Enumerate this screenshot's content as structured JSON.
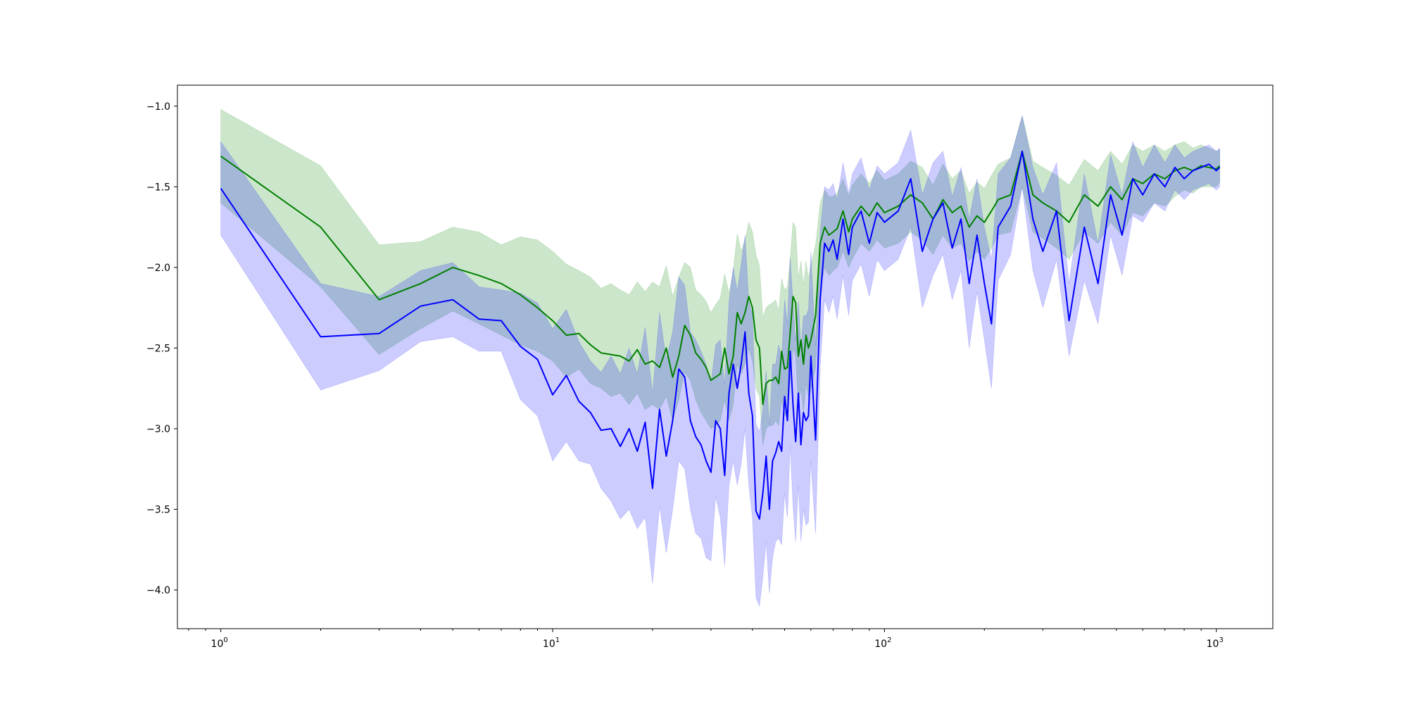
{
  "chart_data": {
    "type": "line",
    "xscale": "log",
    "xlim": [
      0.74,
      1480
    ],
    "ylim": [
      -4.24,
      -0.87
    ],
    "grid": false,
    "title": "",
    "xlabel": "",
    "ylabel": "",
    "xticks": [
      {
        "value": 1,
        "base": "10",
        "exp": "0"
      },
      {
        "value": 10,
        "base": "10",
        "exp": "1"
      },
      {
        "value": 100,
        "base": "10",
        "exp": "2"
      },
      {
        "value": 1000,
        "base": "10",
        "exp": "3"
      }
    ],
    "yticks": [
      {
        "value": -1.0,
        "label": "−1.0"
      },
      {
        "value": -1.5,
        "label": "−1.5"
      },
      {
        "value": -2.0,
        "label": "−2.0"
      },
      {
        "value": -2.5,
        "label": "−2.5"
      },
      {
        "value": -3.0,
        "label": "−3.0"
      },
      {
        "value": -3.5,
        "label": "−3.5"
      },
      {
        "value": -4.0,
        "label": "−4.0"
      }
    ],
    "series": [
      {
        "color": "#008000",
        "band_color": "#008000",
        "band_opacity": 0.2,
        "x": [
          1,
          2,
          3,
          4,
          5,
          6,
          7,
          8,
          9,
          10,
          11,
          12,
          13,
          14,
          15,
          16,
          17,
          18,
          19,
          20,
          21,
          22,
          23,
          24,
          25,
          26,
          27,
          28,
          29,
          30,
          31,
          32,
          33,
          34,
          35,
          36,
          37,
          38,
          39,
          40,
          41,
          42,
          43,
          44,
          45,
          46,
          47,
          48,
          49,
          50,
          51,
          52,
          53,
          54,
          55,
          56,
          57,
          58,
          59,
          60,
          62,
          64,
          66,
          68,
          70,
          72,
          75,
          78,
          80,
          85,
          90,
          95,
          100,
          110,
          120,
          130,
          140,
          150,
          160,
          170,
          180,
          190,
          200,
          210,
          220,
          240,
          260,
          280,
          300,
          330,
          360,
          400,
          440,
          480,
          520,
          560,
          600,
          650,
          700,
          750,
          800,
          850,
          900,
          950,
          1000,
          1024
        ],
        "y": [
          -1.31,
          -1.75,
          -2.2,
          -2.1,
          -2.0,
          -2.05,
          -2.1,
          -2.17,
          -2.25,
          -2.33,
          -2.42,
          -2.41,
          -2.48,
          -2.53,
          -2.54,
          -2.55,
          -2.58,
          -2.51,
          -2.6,
          -2.58,
          -2.62,
          -2.5,
          -2.68,
          -2.55,
          -2.36,
          -2.42,
          -2.53,
          -2.57,
          -2.62,
          -2.7,
          -2.68,
          -2.66,
          -2.5,
          -2.66,
          -2.55,
          -2.28,
          -2.35,
          -2.28,
          -2.18,
          -2.25,
          -2.45,
          -2.5,
          -2.85,
          -2.72,
          -2.7,
          -2.7,
          -2.68,
          -2.72,
          -2.52,
          -2.63,
          -2.62,
          -2.4,
          -2.18,
          -2.22,
          -2.55,
          -2.45,
          -2.6,
          -2.42,
          -2.5,
          -2.45,
          -2.3,
          -1.85,
          -1.75,
          -1.8,
          -1.78,
          -1.76,
          -1.65,
          -1.78,
          -1.7,
          -1.62,
          -1.68,
          -1.6,
          -1.66,
          -1.62,
          -1.55,
          -1.6,
          -1.7,
          -1.58,
          -1.66,
          -1.62,
          -1.75,
          -1.68,
          -1.72,
          -1.65,
          -1.58,
          -1.55,
          -1.28,
          -1.55,
          -1.6,
          -1.65,
          -1.72,
          -1.55,
          -1.62,
          -1.5,
          -1.58,
          -1.45,
          -1.48,
          -1.42,
          -1.45,
          -1.4,
          -1.38,
          -1.4,
          -1.37,
          -1.38,
          -1.39,
          -1.37
        ],
        "lower": [
          -1.6,
          -2.12,
          -2.54,
          -2.38,
          -2.27,
          -2.35,
          -2.42,
          -2.48,
          -2.52,
          -2.58,
          -2.68,
          -2.63,
          -2.72,
          -2.75,
          -2.8,
          -2.78,
          -2.85,
          -2.78,
          -2.88,
          -2.85,
          -2.88,
          -2.8,
          -2.95,
          -2.82,
          -2.65,
          -2.7,
          -2.82,
          -2.9,
          -2.95,
          -3.0,
          -2.98,
          -2.95,
          -2.82,
          -2.95,
          -2.85,
          -2.6,
          -2.66,
          -2.6,
          -2.5,
          -2.58,
          -2.75,
          -2.8,
          -3.1,
          -3.0,
          -2.98,
          -2.98,
          -2.95,
          -2.98,
          -2.82,
          -2.92,
          -2.9,
          -2.72,
          -2.5,
          -2.55,
          -2.85,
          -2.75,
          -2.9,
          -2.72,
          -2.8,
          -2.75,
          -2.62,
          -2.15,
          -2.0,
          -2.05,
          -2.02,
          -2.0,
          -1.9,
          -2.0,
          -1.95,
          -1.85,
          -1.9,
          -1.83,
          -1.88,
          -1.85,
          -1.78,
          -1.83,
          -1.92,
          -1.8,
          -1.88,
          -1.85,
          -1.96,
          -1.9,
          -1.95,
          -1.88,
          -1.8,
          -1.78,
          -1.5,
          -1.78,
          -1.82,
          -1.88,
          -1.95,
          -1.78,
          -1.85,
          -1.72,
          -1.8,
          -1.66,
          -1.68,
          -1.6,
          -1.62,
          -1.56,
          -1.52,
          -1.54,
          -1.5,
          -1.5,
          -1.5,
          -1.47
        ],
        "upper": [
          -1.02,
          -1.37,
          -1.86,
          -1.84,
          -1.75,
          -1.78,
          -1.86,
          -1.81,
          -1.83,
          -1.9,
          -1.98,
          -2.02,
          -2.06,
          -2.13,
          -2.1,
          -2.14,
          -2.17,
          -2.09,
          -2.15,
          -2.09,
          -2.12,
          -1.99,
          -2.18,
          -2.06,
          -1.97,
          -2.0,
          -2.14,
          -2.17,
          -2.21,
          -2.28,
          -2.23,
          -2.19,
          -2.04,
          -2.16,
          -2.02,
          -1.79,
          -1.9,
          -1.83,
          -1.72,
          -1.78,
          -1.92,
          -1.99,
          -2.31,
          -2.25,
          -2.23,
          -2.22,
          -2.2,
          -2.27,
          -2.07,
          -2.14,
          -2.12,
          -1.94,
          -1.72,
          -1.75,
          -2.07,
          -1.96,
          -2.11,
          -1.96,
          -2.07,
          -1.98,
          -1.86,
          -1.6,
          -1.52,
          -1.56,
          -1.56,
          -1.54,
          -1.45,
          -1.56,
          -1.49,
          -1.42,
          -1.48,
          -1.4,
          -1.46,
          -1.42,
          -1.34,
          -1.38,
          -1.49,
          -1.36,
          -1.45,
          -1.4,
          -1.54,
          -1.47,
          -1.51,
          -1.43,
          -1.36,
          -1.32,
          -1.06,
          -1.34,
          -1.38,
          -1.43,
          -1.49,
          -1.33,
          -1.4,
          -1.28,
          -1.36,
          -1.24,
          -1.28,
          -1.24,
          -1.28,
          -1.24,
          -1.22,
          -1.26,
          -1.24,
          -1.26,
          -1.28,
          -1.27
        ]
      },
      {
        "color": "#0000ff",
        "band_color": "#0000ff",
        "band_opacity": 0.2,
        "x": [
          1,
          2,
          3,
          4,
          5,
          6,
          7,
          8,
          9,
          10,
          11,
          12,
          13,
          14,
          15,
          16,
          17,
          18,
          19,
          20,
          21,
          22,
          23,
          24,
          25,
          26,
          27,
          28,
          29,
          30,
          31,
          32,
          33,
          34,
          35,
          36,
          37,
          38,
          39,
          40,
          41,
          42,
          43,
          44,
          45,
          46,
          47,
          48,
          49,
          50,
          51,
          52,
          53,
          54,
          55,
          56,
          57,
          58,
          59,
          60,
          62,
          64,
          66,
          68,
          70,
          72,
          75,
          78,
          80,
          85,
          90,
          95,
          100,
          110,
          120,
          130,
          140,
          150,
          160,
          170,
          180,
          190,
          200,
          210,
          220,
          240,
          260,
          280,
          300,
          330,
          360,
          400,
          440,
          480,
          520,
          560,
          600,
          650,
          700,
          750,
          800,
          850,
          900,
          950,
          1000,
          1024
        ],
        "y": [
          -1.51,
          -2.43,
          -2.41,
          -2.24,
          -2.2,
          -2.32,
          -2.33,
          -2.49,
          -2.57,
          -2.79,
          -2.67,
          -2.83,
          -2.9,
          -3.01,
          -3.0,
          -3.11,
          -3.0,
          -3.14,
          -2.96,
          -3.37,
          -2.88,
          -3.17,
          -2.95,
          -2.63,
          -2.68,
          -2.95,
          -3.05,
          -3.1,
          -3.2,
          -3.27,
          -2.95,
          -3.0,
          -3.29,
          -2.78,
          -2.6,
          -2.75,
          -2.6,
          -2.4,
          -2.78,
          -2.92,
          -3.51,
          -3.56,
          -3.4,
          -3.17,
          -3.5,
          -3.2,
          -3.15,
          -3.08,
          -3.14,
          -2.8,
          -2.95,
          -2.52,
          -2.85,
          -3.08,
          -2.78,
          -3.1,
          -2.9,
          -2.95,
          -2.92,
          -2.55,
          -3.07,
          -2.2,
          -1.85,
          -1.9,
          -1.83,
          -1.95,
          -1.7,
          -1.92,
          -1.75,
          -1.65,
          -1.85,
          -1.66,
          -1.72,
          -1.65,
          -1.45,
          -1.9,
          -1.7,
          -1.6,
          -1.88,
          -1.7,
          -2.1,
          -1.8,
          -2.1,
          -2.35,
          -1.75,
          -1.62,
          -1.28,
          -1.7,
          -1.9,
          -1.65,
          -2.33,
          -1.75,
          -2.1,
          -1.55,
          -1.8,
          -1.45,
          -1.55,
          -1.42,
          -1.5,
          -1.38,
          -1.45,
          -1.4,
          -1.38,
          -1.36,
          -1.4,
          -1.38
        ],
        "lower": [
          -1.8,
          -2.76,
          -2.64,
          -2.46,
          -2.43,
          -2.52,
          -2.52,
          -2.82,
          -2.92,
          -3.2,
          -3.08,
          -3.2,
          -3.22,
          -3.37,
          -3.45,
          -3.56,
          -3.5,
          -3.62,
          -3.55,
          -3.96,
          -3.48,
          -3.77,
          -3.5,
          -3.2,
          -3.25,
          -3.5,
          -3.65,
          -3.68,
          -3.8,
          -3.82,
          -3.42,
          -3.55,
          -3.85,
          -3.35,
          -3.2,
          -3.35,
          -3.22,
          -3.0,
          -3.35,
          -3.55,
          -4.05,
          -4.1,
          -3.92,
          -3.7,
          -4.02,
          -3.8,
          -3.7,
          -3.68,
          -3.72,
          -3.4,
          -3.55,
          -3.1,
          -3.48,
          -3.7,
          -3.35,
          -3.7,
          -3.5,
          -3.6,
          -3.58,
          -3.2,
          -3.65,
          -2.62,
          -2.2,
          -2.28,
          -2.18,
          -2.32,
          -2.05,
          -2.3,
          -2.08,
          -1.98,
          -2.18,
          -1.95,
          -2.02,
          -1.95,
          -1.75,
          -2.25,
          -2.05,
          -1.92,
          -2.2,
          -2.02,
          -2.5,
          -2.15,
          -2.45,
          -2.75,
          -2.08,
          -1.92,
          -1.5,
          -2.02,
          -2.25,
          -1.95,
          -2.55,
          -2.08,
          -2.35,
          -1.8,
          -2.05,
          -1.68,
          -1.72,
          -1.6,
          -1.65,
          -1.52,
          -1.58,
          -1.52,
          -1.5,
          -1.48,
          -1.52,
          -1.5
        ],
        "upper": [
          -1.22,
          -2.1,
          -2.18,
          -2.02,
          -1.97,
          -2.12,
          -2.14,
          -2.16,
          -2.22,
          -2.38,
          -2.26,
          -2.46,
          -2.58,
          -2.65,
          -2.55,
          -2.66,
          -2.5,
          -2.66,
          -2.37,
          -2.78,
          -2.28,
          -2.57,
          -2.4,
          -2.06,
          -2.11,
          -2.4,
          -2.45,
          -2.52,
          -2.6,
          -2.72,
          -2.48,
          -2.45,
          -2.73,
          -2.21,
          -2.0,
          -2.15,
          -1.98,
          -1.8,
          -2.21,
          -2.29,
          -2.97,
          -3.02,
          -2.88,
          -2.64,
          -2.98,
          -2.6,
          -2.6,
          -2.48,
          -2.56,
          -2.2,
          -2.35,
          -1.94,
          -2.22,
          -2.46,
          -2.21,
          -2.5,
          -2.3,
          -2.3,
          -2.26,
          -1.9,
          -2.49,
          -1.78,
          -1.5,
          -1.52,
          -1.48,
          -1.58,
          -1.35,
          -1.54,
          -1.42,
          -1.32,
          -1.52,
          -1.37,
          -1.42,
          -1.35,
          -1.15,
          -1.55,
          -1.35,
          -1.28,
          -1.56,
          -1.38,
          -1.7,
          -1.45,
          -1.75,
          -1.95,
          -1.42,
          -1.32,
          -1.06,
          -1.38,
          -1.55,
          -1.35,
          -2.1,
          -1.42,
          -1.85,
          -1.3,
          -1.55,
          -1.22,
          -1.38,
          -1.24,
          -1.35,
          -1.24,
          -1.32,
          -1.28,
          -1.26,
          -1.24,
          -1.28,
          -1.26
        ]
      }
    ]
  }
}
